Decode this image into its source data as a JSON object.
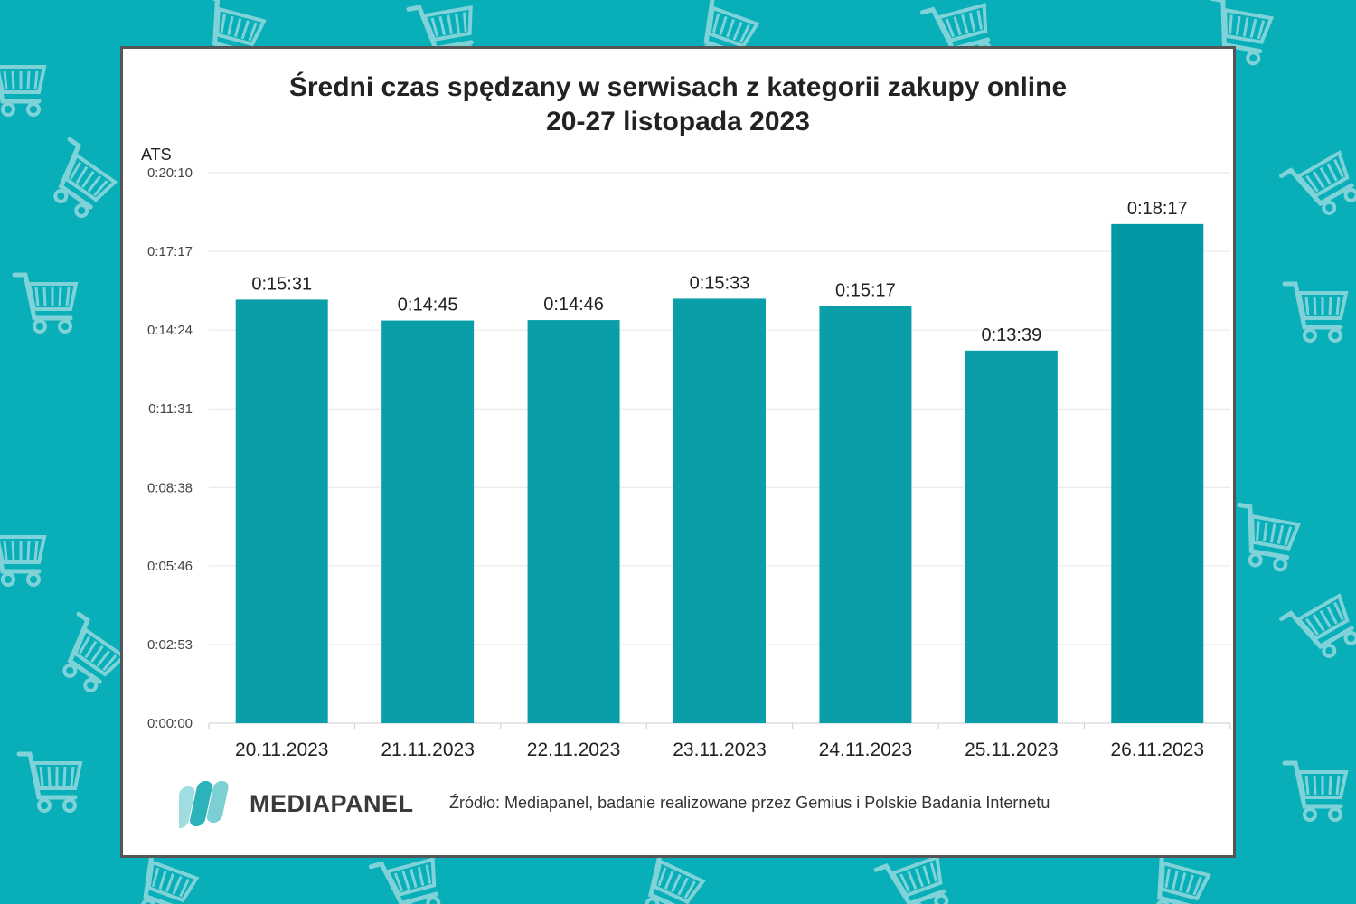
{
  "chart_data": {
    "type": "bar",
    "title": [
      "Średni czas spędzany w serwisach z kategorii zakupy online",
      "20-27 listopada 2023"
    ],
    "ylabel": "ATS",
    "categories": [
      "20.11.2023",
      "21.11.2023",
      "22.11.2023",
      "23.11.2023",
      "24.11.2023",
      "25.11.2023",
      "26.11.2023"
    ],
    "values": [
      "0:15:31",
      "0:14:45",
      "0:14:46",
      "0:15:33",
      "0:15:17",
      "0:13:39",
      "0:18:17"
    ],
    "yticks": [
      "0:00:00",
      "0:02:53",
      "0:05:46",
      "0:08:38",
      "0:11:31",
      "0:14:24",
      "0:17:17",
      "0:20:10"
    ],
    "ylim": [
      "0:00:00",
      "0:20:10"
    ],
    "grid": true,
    "bar_color": "#0a9ea8",
    "last_bar_color": "#0099a4"
  },
  "footer": {
    "logo_text": "MEDIAPANEL",
    "source": "Źródło: Mediapanel, badanie realizowane przez Gemius i Polskie Badania Internetu"
  },
  "colors": {
    "background": "#08aeb8",
    "pattern": "#7fd3d8",
    "card": "#ffffff",
    "card_border": "#555555"
  },
  "background_icons": "shopping-cart-icon"
}
